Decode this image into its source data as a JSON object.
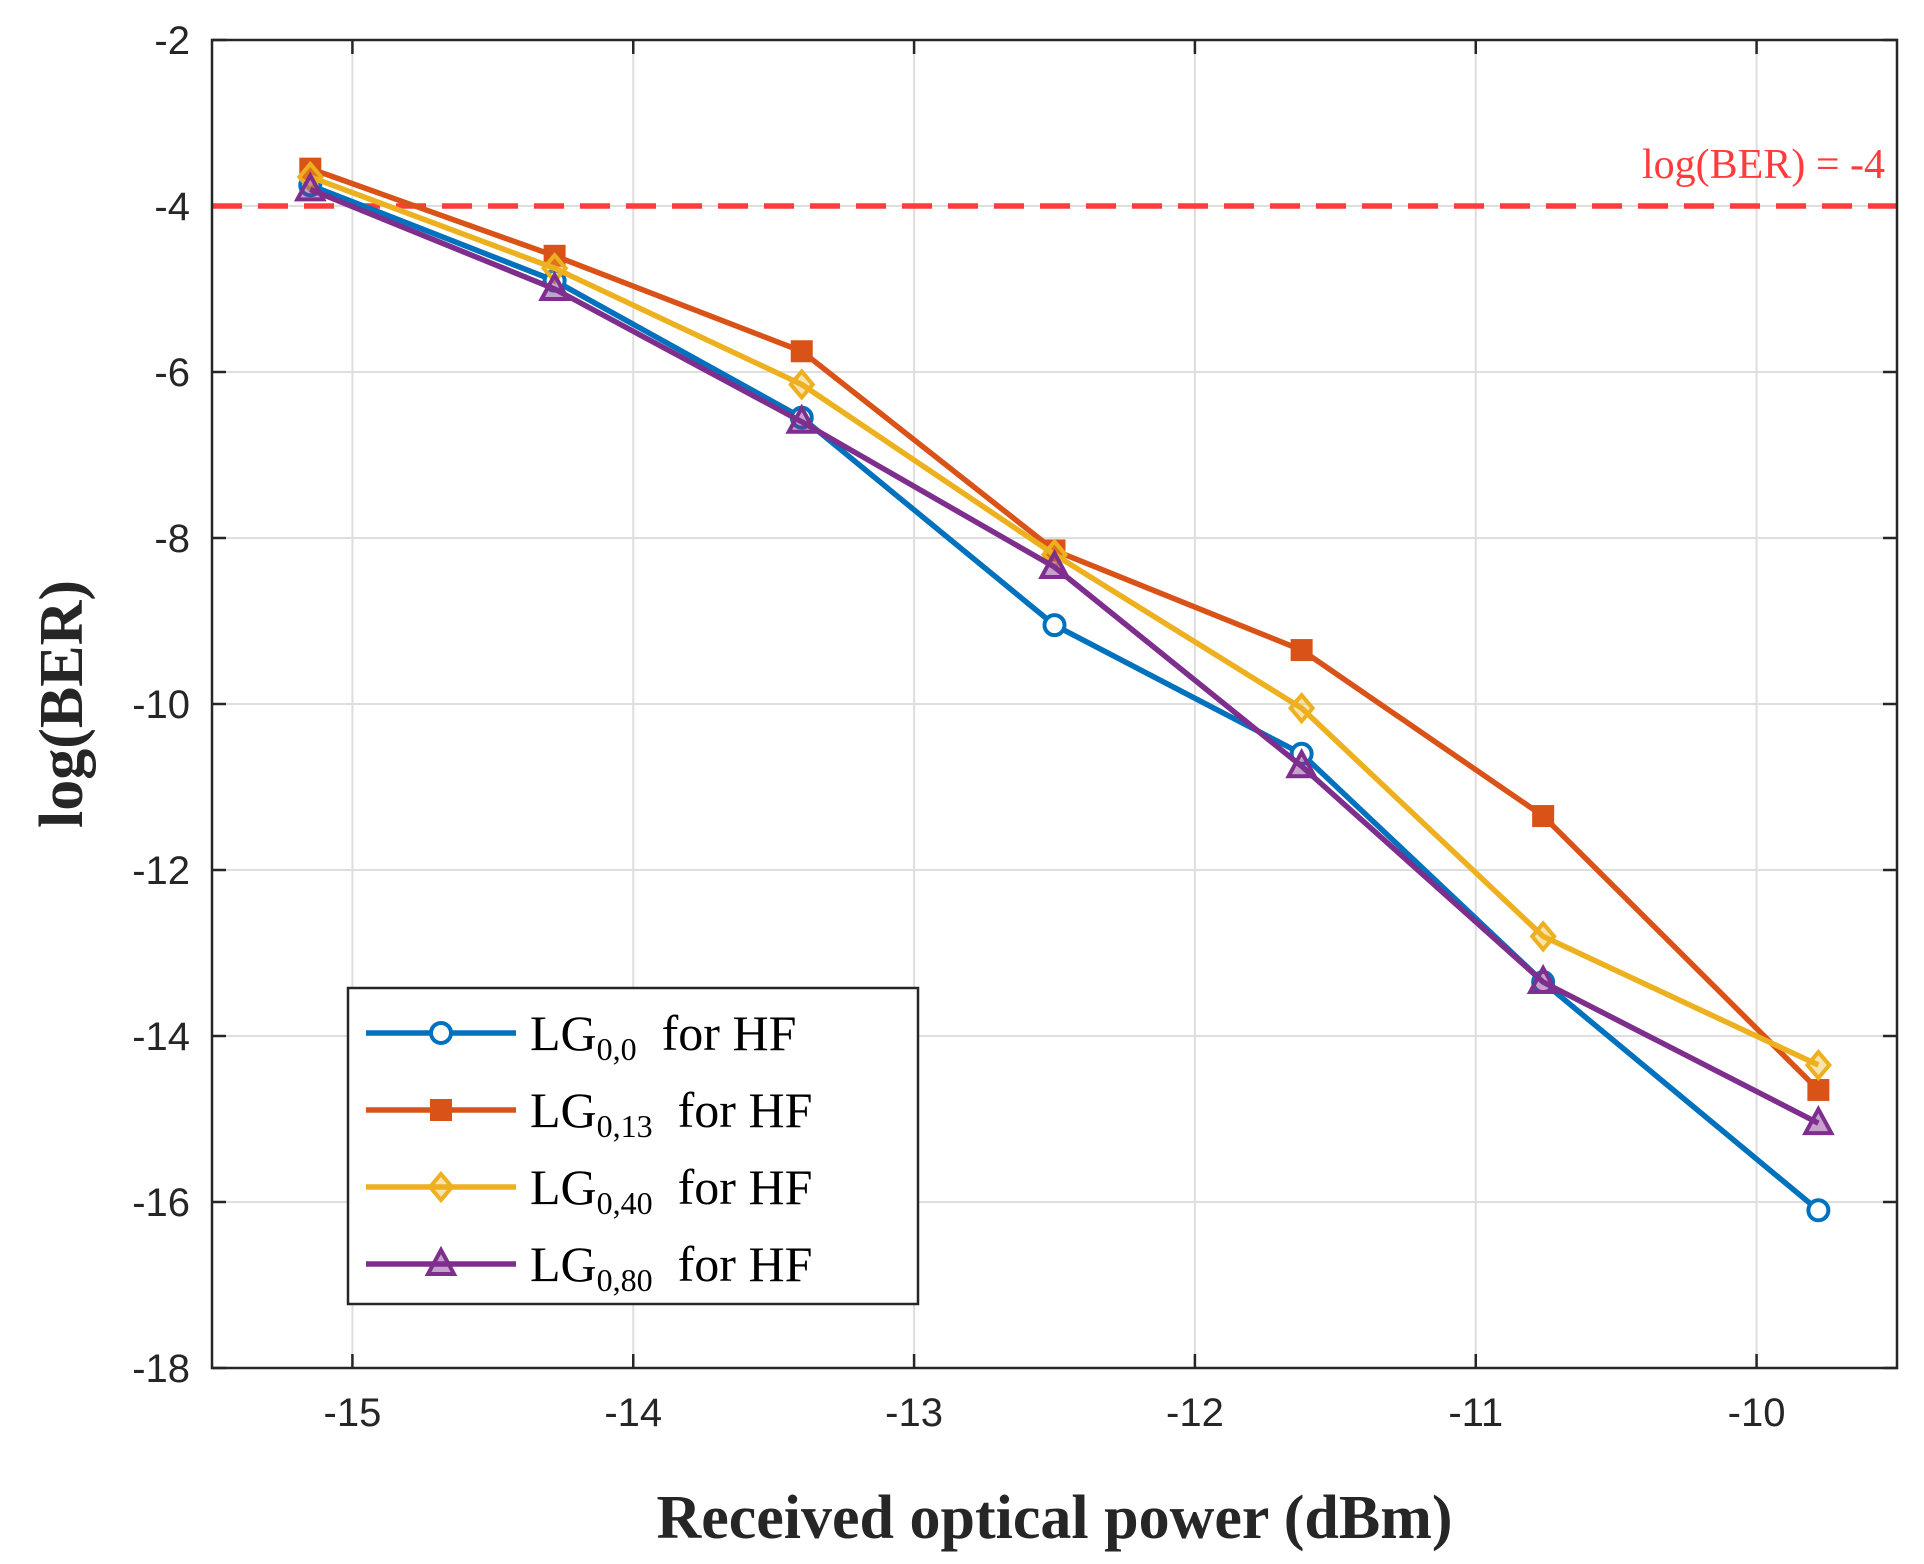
{
  "chart_data": {
    "type": "line",
    "xlabel": "Received optical power (dBm)",
    "ylabel": "log(BER)",
    "xlim": [
      -15.5,
      -9.5
    ],
    "ylim": [
      -18,
      -2
    ],
    "xticks": [
      -15,
      -14,
      -13,
      -12,
      -11,
      -10
    ],
    "yticks": [
      -18,
      -16,
      -14,
      -12,
      -10,
      -8,
      -6,
      -4,
      -2
    ],
    "grid": true,
    "legend_position": "bottom-left",
    "x": [
      -15.15,
      -14.28,
      -13.4,
      -12.5,
      -11.62,
      -10.76,
      -9.78
    ],
    "series": [
      {
        "name": "LG",
        "sub": "0,0",
        "suffix": "for HF",
        "color": "#0072BD",
        "marker": "circle",
        "values": [
          -3.75,
          -4.9,
          -6.55,
          -9.05,
          -10.6,
          -13.35,
          -16.1
        ]
      },
      {
        "name": "LG",
        "sub": "0,13",
        "suffix": "for HF",
        "color": "#D95319",
        "marker": "square",
        "values": [
          -3.55,
          -4.6,
          -5.75,
          -8.15,
          -9.35,
          -11.35,
          -14.65
        ]
      },
      {
        "name": "LG",
        "sub": "0,40",
        "suffix": "for HF",
        "color": "#EDB120",
        "marker": "diamond",
        "values": [
          -3.65,
          -4.75,
          -6.15,
          -8.2,
          -10.05,
          -12.8,
          -14.35
        ]
      },
      {
        "name": "LG",
        "sub": "0,80",
        "suffix": "for HF",
        "color": "#7E2F8E",
        "marker": "triangle",
        "values": [
          -3.8,
          -5.0,
          -6.6,
          -8.35,
          -10.75,
          -13.35,
          -15.05
        ]
      }
    ],
    "reference_line": {
      "y": -4,
      "label": "log(BER) = -4",
      "color": "#FF3B3B",
      "style": "dashed"
    }
  }
}
